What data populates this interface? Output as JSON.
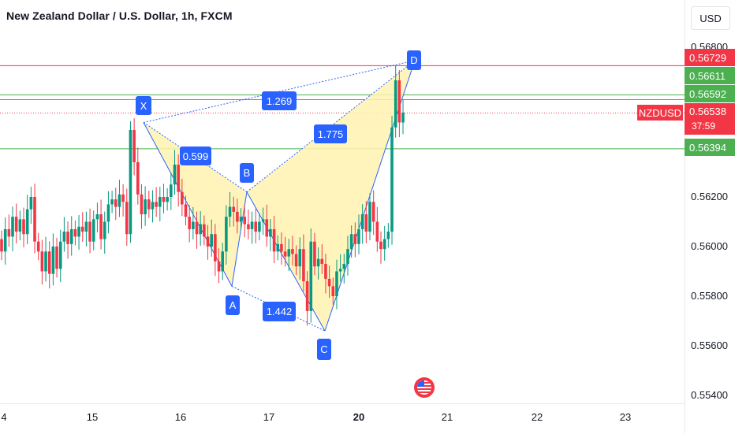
{
  "header": {
    "title": "New Zealand Dollar / U.S. Dollar, 1h, FXCM",
    "currency_button": "USD"
  },
  "price_axis": {
    "ticks": [
      "0.56200",
      "0.56000",
      "0.55800",
      "0.55600",
      "0.55400"
    ],
    "partial_top_tick": "0.56800",
    "tags": [
      {
        "value": "0.56729",
        "color": "#f23645"
      },
      {
        "value": "0.56611",
        "color": "#26a69a"
      },
      {
        "value": "0.56592",
        "color": "#26a69a"
      },
      {
        "value": "0.56394",
        "color": "#26a69a"
      }
    ],
    "current": {
      "symbol": "NZDUSD",
      "value": "0.56538",
      "countdown": "37:59"
    }
  },
  "time_axis": {
    "labels": [
      "4",
      "15",
      "16",
      "17",
      "20",
      "21",
      "22",
      "23"
    ],
    "bold_label": "20"
  },
  "pattern": {
    "points": [
      "X",
      "A",
      "B",
      "C",
      "D"
    ],
    "ratios": [
      "0.599",
      "1.269",
      "1.775",
      "1.442"
    ]
  },
  "colors": {
    "up": "#089981",
    "down": "#f23645",
    "pattern_line": "#2962ff",
    "pattern_fill": "#fff3b0",
    "hline_red": "#f23645",
    "hline_green": "#4caf50"
  },
  "chart_data": {
    "type": "candlestick",
    "title": "New Zealand Dollar / U.S. Dollar, 1h, FXCM",
    "ylim": [
      0.5535,
      0.5686
    ],
    "harmonic_points": [
      {
        "label": "X",
        "price": 0.565
      },
      {
        "label": "A",
        "price": 0.5584
      },
      {
        "label": "B",
        "price": 0.5622
      },
      {
        "label": "C",
        "price": 0.5566
      },
      {
        "label": "D",
        "price": 0.5675
      }
    ],
    "horizontal_levels": [
      0.56729,
      0.56611,
      0.56592,
      0.56394
    ],
    "current_price": 0.56538,
    "candles": [
      [
        0.5603,
        0.5598
      ],
      [
        0.5598,
        0.5607
      ],
      [
        0.5607,
        0.5604
      ],
      [
        0.5604,
        0.5612
      ],
      [
        0.5612,
        0.5606
      ],
      [
        0.5606,
        0.5611
      ],
      [
        0.5611,
        0.5605
      ],
      [
        0.5605,
        0.5615
      ],
      [
        0.5615,
        0.562
      ],
      [
        0.562,
        0.5602
      ],
      [
        0.5602,
        0.5598
      ],
      [
        0.5598,
        0.559
      ],
      [
        0.559,
        0.5598
      ],
      [
        0.5598,
        0.5589
      ],
      [
        0.5589,
        0.56
      ],
      [
        0.56,
        0.5591
      ],
      [
        0.5591,
        0.5602
      ],
      [
        0.5602,
        0.5606
      ],
      [
        0.5606,
        0.5601
      ],
      [
        0.5601,
        0.5607
      ],
      [
        0.5607,
        0.5604
      ],
      [
        0.5604,
        0.5608
      ],
      [
        0.5608,
        0.5606
      ],
      [
        0.5606,
        0.561
      ],
      [
        0.561,
        0.5602
      ],
      [
        0.5602,
        0.5611
      ],
      [
        0.5611,
        0.5613
      ],
      [
        0.5613,
        0.5603
      ],
      [
        0.5603,
        0.561
      ],
      [
        0.561,
        0.5617
      ],
      [
        0.5617,
        0.5619
      ],
      [
        0.5619,
        0.5616
      ],
      [
        0.5616,
        0.5621
      ],
      [
        0.5621,
        0.5618
      ],
      [
        0.5618,
        0.5605
      ],
      [
        0.5605,
        0.5647
      ],
      [
        0.5647,
        0.5634
      ],
      [
        0.5634,
        0.5621
      ],
      [
        0.5621,
        0.5613
      ],
      [
        0.5613,
        0.5619
      ],
      [
        0.5619,
        0.5615
      ],
      [
        0.5615,
        0.5618
      ],
      [
        0.5618,
        0.5616
      ],
      [
        0.5616,
        0.562
      ],
      [
        0.562,
        0.5618
      ],
      [
        0.5618,
        0.562
      ],
      [
        0.562,
        0.5625
      ],
      [
        0.5625,
        0.5633
      ],
      [
        0.5633,
        0.5622
      ],
      [
        0.5622,
        0.5617
      ],
      [
        0.5617,
        0.5612
      ],
      [
        0.5612,
        0.5607
      ],
      [
        0.5607,
        0.561
      ],
      [
        0.561,
        0.5605
      ],
      [
        0.5605,
        0.5609
      ],
      [
        0.5609,
        0.5604
      ],
      [
        0.5604,
        0.56
      ],
      [
        0.56,
        0.5605
      ],
      [
        0.5605,
        0.5594
      ],
      [
        0.5594,
        0.559
      ],
      [
        0.559,
        0.5598
      ],
      [
        0.5598,
        0.5612
      ],
      [
        0.5612,
        0.5616
      ],
      [
        0.5616,
        0.5614
      ],
      [
        0.5614,
        0.561
      ],
      [
        0.561,
        0.5612
      ],
      [
        0.5612,
        0.5609
      ],
      [
        0.5609,
        0.5607
      ],
      [
        0.5607,
        0.561
      ],
      [
        0.561,
        0.5606
      ],
      [
        0.5606,
        0.561
      ],
      [
        0.561,
        0.5611
      ],
      [
        0.5611,
        0.5604
      ],
      [
        0.5604,
        0.5607
      ],
      [
        0.5607,
        0.5598
      ],
      [
        0.5598,
        0.5601
      ],
      [
        0.5601,
        0.5598
      ],
      [
        0.5598,
        0.5596
      ],
      [
        0.5596,
        0.5599
      ],
      [
        0.5599,
        0.5597
      ],
      [
        0.5597,
        0.5592
      ],
      [
        0.5592,
        0.5599
      ],
      [
        0.5599,
        0.5586
      ],
      [
        0.5586,
        0.5574
      ],
      [
        0.5574,
        0.5602
      ],
      [
        0.5602,
        0.5592
      ],
      [
        0.5592,
        0.5595
      ],
      [
        0.5595,
        0.5593
      ],
      [
        0.5593,
        0.5587
      ],
      [
        0.5587,
        0.5584
      ],
      [
        0.5584,
        0.558
      ],
      [
        0.558,
        0.559
      ],
      [
        0.559,
        0.5591
      ],
      [
        0.5591,
        0.5593
      ],
      [
        0.5593,
        0.5599
      ],
      [
        0.5599,
        0.5605
      ],
      [
        0.5605,
        0.5601
      ],
      [
        0.5601,
        0.5607
      ],
      [
        0.5607,
        0.5613
      ],
      [
        0.5613,
        0.5606
      ],
      [
        0.5606,
        0.5618
      ],
      [
        0.5618,
        0.561
      ],
      [
        0.561,
        0.5602
      ],
      [
        0.5602,
        0.5599
      ],
      [
        0.5599,
        0.5603
      ],
      [
        0.5603,
        0.5606
      ],
      [
        0.5606,
        0.5648
      ],
      [
        0.5648,
        0.5667
      ],
      [
        0.5667,
        0.565
      ],
      [
        0.565,
        0.5654
      ]
    ]
  }
}
